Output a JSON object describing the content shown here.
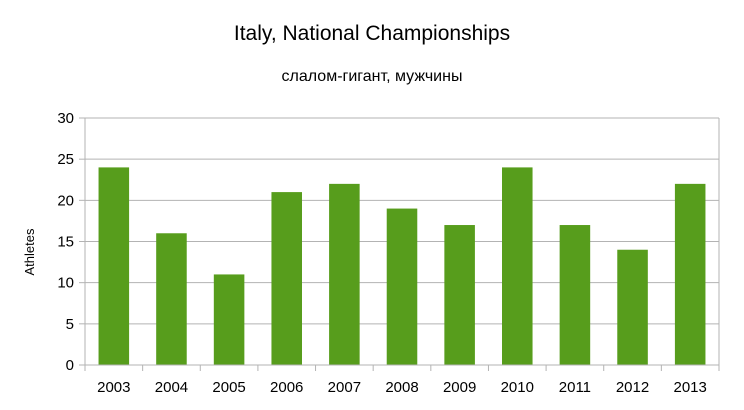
{
  "chart_data": {
    "type": "bar",
    "title": "Italy, National Championships",
    "subtitle": "слалом-гигант, мужчины",
    "xlabel": "",
    "ylabel": "Athletes",
    "categories": [
      "2003",
      "2004",
      "2005",
      "2006",
      "2007",
      "2008",
      "2009",
      "2010",
      "2011",
      "2012",
      "2013"
    ],
    "values": [
      24,
      16,
      11,
      21,
      22,
      19,
      17,
      24,
      17,
      14,
      22
    ],
    "ylim": [
      0,
      30
    ],
    "yticks": [
      0,
      5,
      10,
      15,
      20,
      25,
      30
    ],
    "grid": true,
    "legend": "none",
    "colors": {
      "bar": "#579d1c",
      "grid": "#b3b3b3",
      "axis": "#b3b3b3"
    }
  }
}
